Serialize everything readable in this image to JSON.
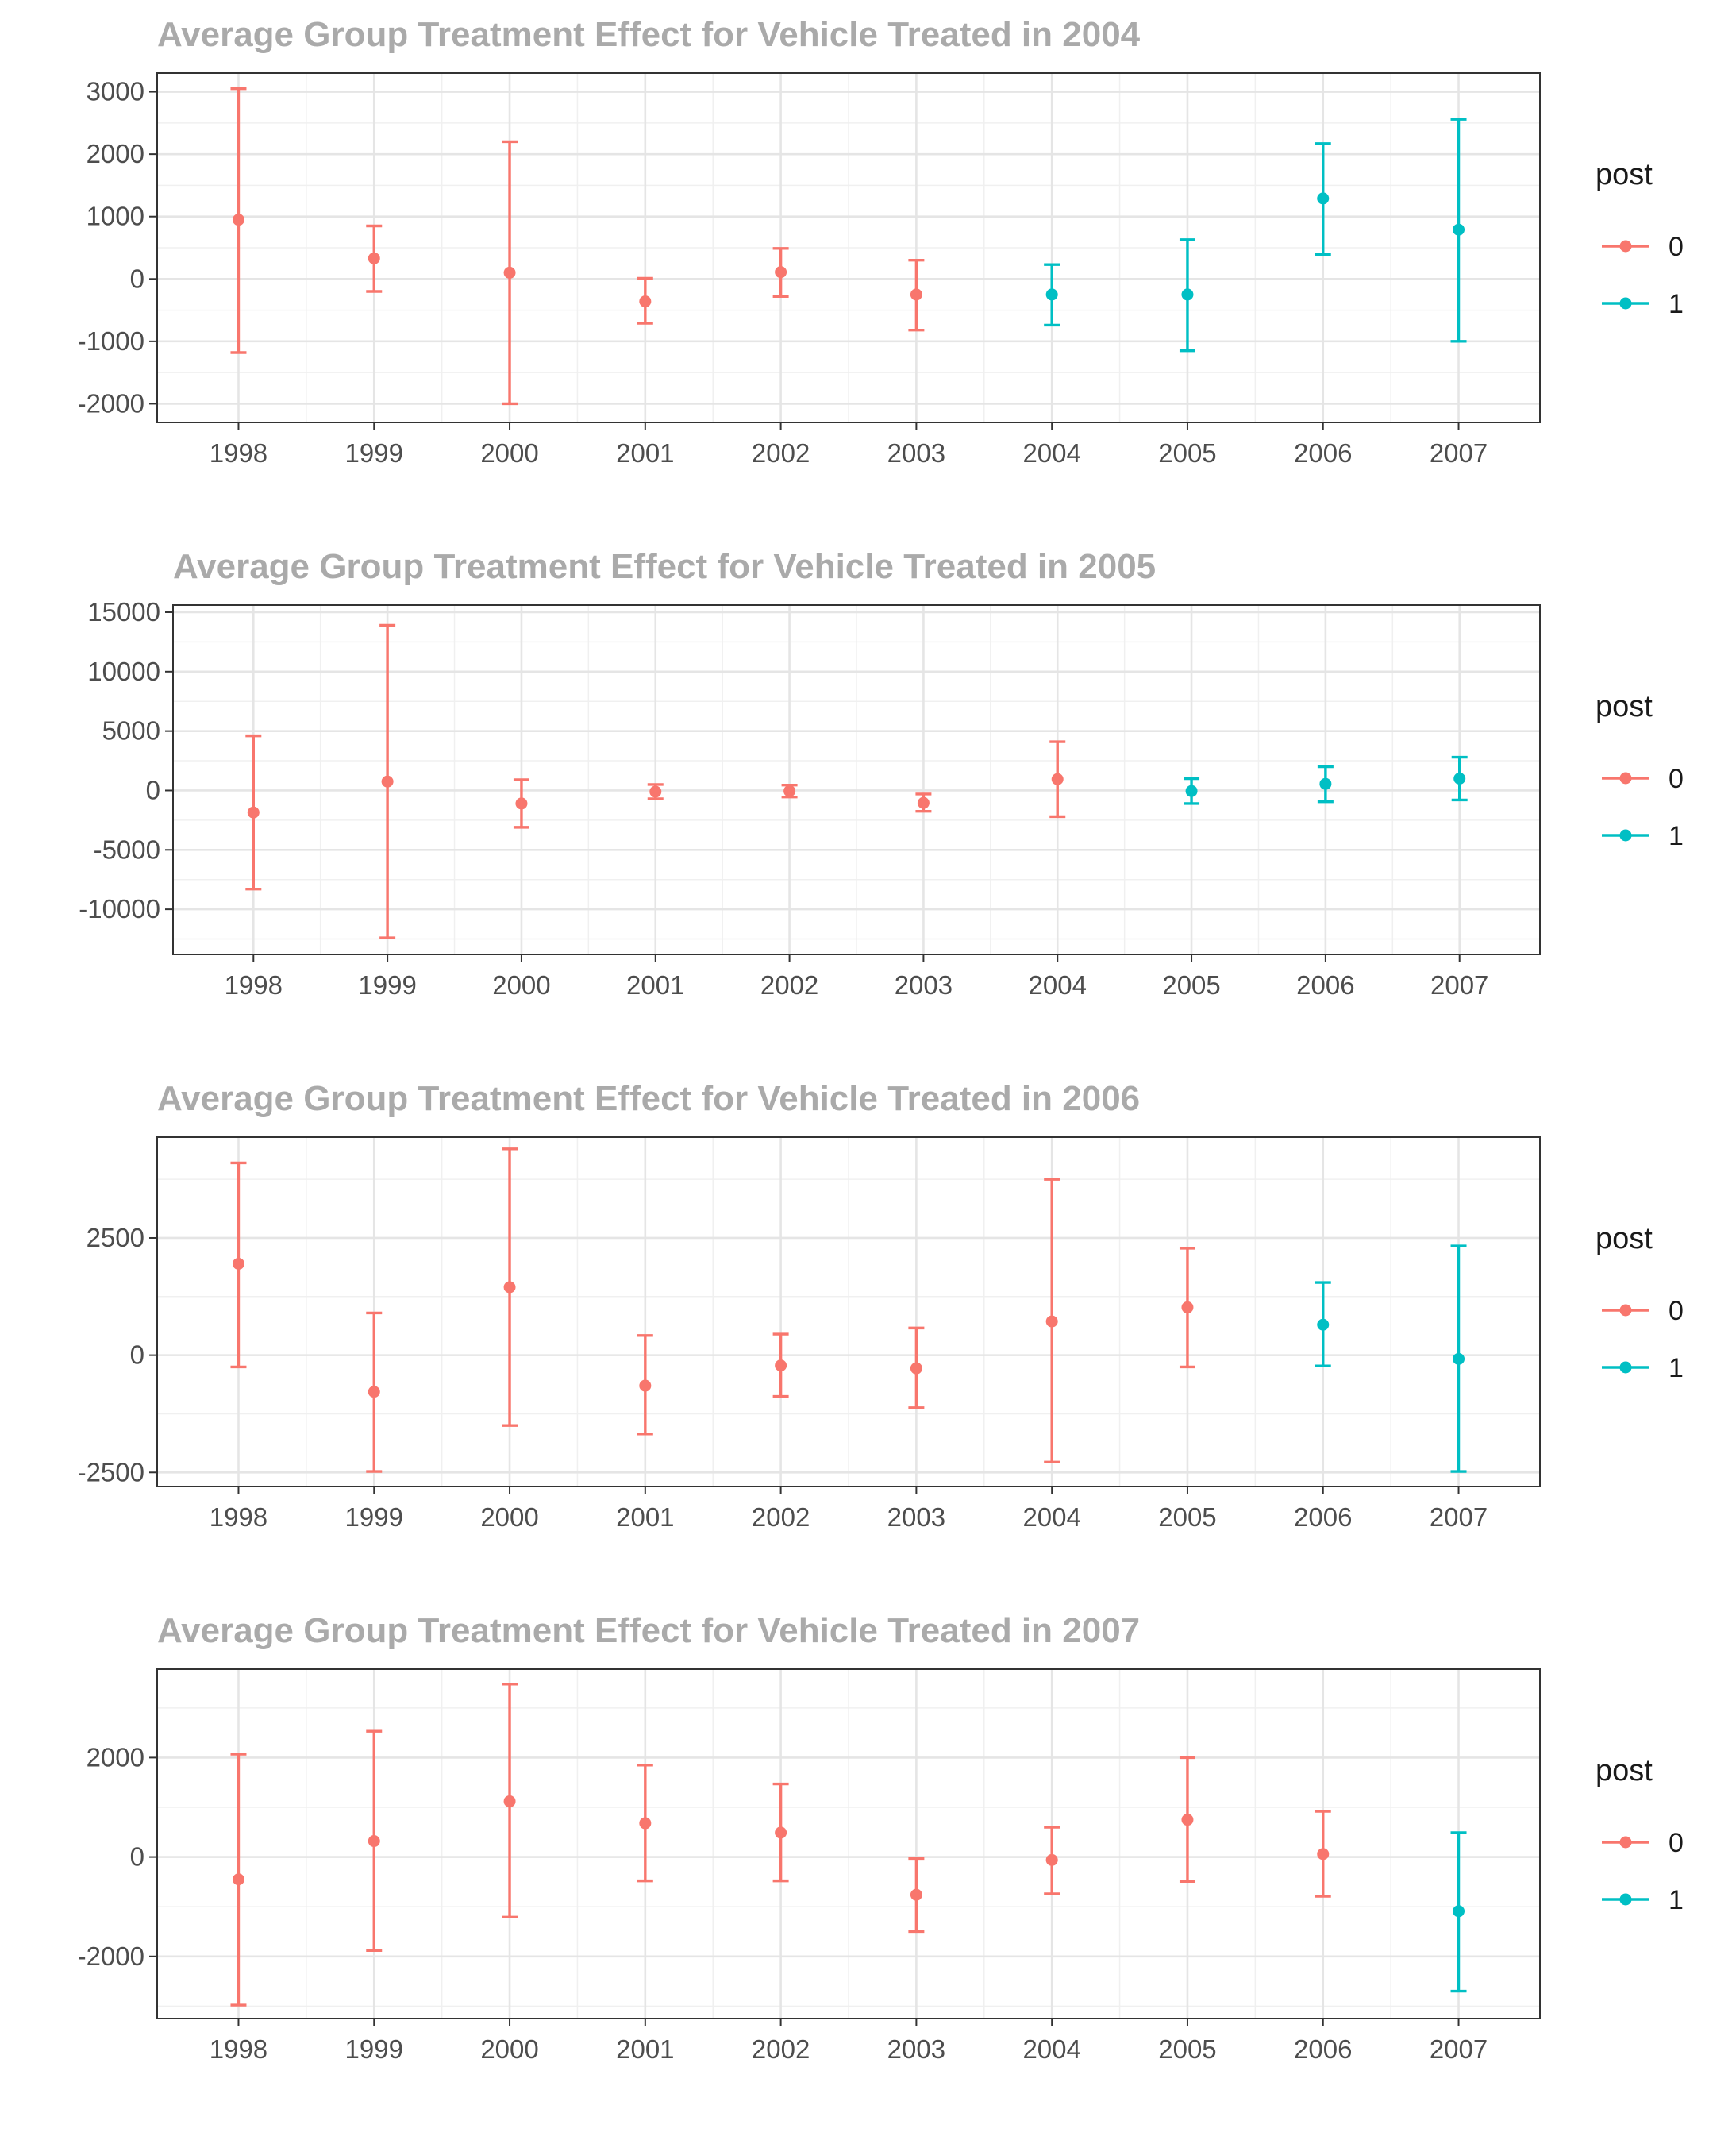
{
  "colors": {
    "pre": "#F8766D",
    "post": "#00BFC4"
  },
  "legend": {
    "title": "post",
    "labels": [
      "0",
      "1"
    ]
  },
  "chart_data": [
    {
      "type": "errorbar",
      "title": "Average Group Treatment Effect for Vehicle Treated in 2004",
      "xlabel": "",
      "ylabel": "",
      "x": [
        "1998",
        "1999",
        "2000",
        "2001",
        "2002",
        "2003",
        "2004",
        "2005",
        "2006",
        "2007"
      ],
      "ylim": [
        -2300,
        3300
      ],
      "yticks": [
        -2000,
        -1000,
        0,
        1000,
        2000,
        3000
      ],
      "ytick_labels": [
        "-2000",
        "-1000",
        "0",
        "1000",
        "2000",
        "3000"
      ],
      "points": [
        {
          "x": "1998",
          "post": 0,
          "y": 950,
          "lower": -1180,
          "upper": 3050
        },
        {
          "x": "1999",
          "post": 0,
          "y": 330,
          "lower": -200,
          "upper": 850
        },
        {
          "x": "2000",
          "post": 0,
          "y": 100,
          "lower": -2000,
          "upper": 2200
        },
        {
          "x": "2001",
          "post": 0,
          "y": -360,
          "lower": -710,
          "upper": 10
        },
        {
          "x": "2002",
          "post": 0,
          "y": 110,
          "lower": -280,
          "upper": 490
        },
        {
          "x": "2003",
          "post": 0,
          "y": -250,
          "lower": -820,
          "upper": 300
        },
        {
          "x": "2004",
          "post": 1,
          "y": -250,
          "lower": -740,
          "upper": 230
        },
        {
          "x": "2005",
          "post": 1,
          "y": -250,
          "lower": -1150,
          "upper": 630
        },
        {
          "x": "2006",
          "post": 1,
          "y": 1290,
          "lower": 390,
          "upper": 2170
        },
        {
          "x": "2007",
          "post": 1,
          "y": 790,
          "lower": -1000,
          "upper": 2560
        }
      ]
    },
    {
      "type": "errorbar",
      "title": "Average Group Treatment Effect for Vehicle Treated in 2005",
      "xlabel": "",
      "ylabel": "",
      "x": [
        "1998",
        "1999",
        "2000",
        "2001",
        "2002",
        "2003",
        "2004",
        "2005",
        "2006",
        "2007"
      ],
      "ylim": [
        -13800,
        15600
      ],
      "yticks": [
        -10000,
        -5000,
        0,
        5000,
        10000,
        15000
      ],
      "ytick_labels": [
        "-10000",
        "-5000",
        "0",
        "5000",
        "10000",
        "15000"
      ],
      "points": [
        {
          "x": "1998",
          "post": 0,
          "y": -1850,
          "lower": -8300,
          "upper": 4600
        },
        {
          "x": "1999",
          "post": 0,
          "y": 750,
          "lower": -12400,
          "upper": 13900
        },
        {
          "x": "2000",
          "post": 0,
          "y": -1100,
          "lower": -3100,
          "upper": 900
        },
        {
          "x": "2001",
          "post": 0,
          "y": -100,
          "lower": -700,
          "upper": 500
        },
        {
          "x": "2002",
          "post": 0,
          "y": -50,
          "lower": -550,
          "upper": 450
        },
        {
          "x": "2003",
          "post": 0,
          "y": -1050,
          "lower": -1750,
          "upper": -300
        },
        {
          "x": "2004",
          "post": 0,
          "y": 950,
          "lower": -2200,
          "upper": 4100
        },
        {
          "x": "2005",
          "post": 1,
          "y": -50,
          "lower": -1100,
          "upper": 1000
        },
        {
          "x": "2006",
          "post": 1,
          "y": 550,
          "lower": -950,
          "upper": 2000
        },
        {
          "x": "2007",
          "post": 1,
          "y": 1000,
          "lower": -800,
          "upper": 2800
        }
      ]
    },
    {
      "type": "errorbar",
      "title": "Average Group Treatment Effect for Vehicle Treated in 2006",
      "xlabel": "",
      "ylabel": "",
      "x": [
        "1998",
        "1999",
        "2000",
        "2001",
        "2002",
        "2003",
        "2004",
        "2005",
        "2006",
        "2007"
      ],
      "ylim": [
        -2800,
        4650
      ],
      "yticks": [
        -2500,
        0,
        2500
      ],
      "ytick_labels": [
        "-2500",
        "0",
        "2500"
      ],
      "points": [
        {
          "x": "1998",
          "post": 0,
          "y": 1950,
          "lower": -250,
          "upper": 4100
        },
        {
          "x": "1999",
          "post": 0,
          "y": -780,
          "lower": -2480,
          "upper": 900
        },
        {
          "x": "2000",
          "post": 0,
          "y": 1450,
          "lower": -1500,
          "upper": 4400
        },
        {
          "x": "2001",
          "post": 0,
          "y": -650,
          "lower": -1680,
          "upper": 420
        },
        {
          "x": "2002",
          "post": 0,
          "y": -220,
          "lower": -880,
          "upper": 450
        },
        {
          "x": "2003",
          "post": 0,
          "y": -280,
          "lower": -1120,
          "upper": 580
        },
        {
          "x": "2004",
          "post": 0,
          "y": 720,
          "lower": -2280,
          "upper": 3750
        },
        {
          "x": "2005",
          "post": 0,
          "y": 1020,
          "lower": -250,
          "upper": 2280
        },
        {
          "x": "2006",
          "post": 1,
          "y": 650,
          "lower": -230,
          "upper": 1550
        },
        {
          "x": "2007",
          "post": 1,
          "y": -80,
          "lower": -2480,
          "upper": 2330
        }
      ]
    },
    {
      "type": "errorbar",
      "title": "Average Group Treatment Effect for Vehicle Treated in 2007",
      "xlabel": "",
      "ylabel": "",
      "x": [
        "1998",
        "1999",
        "2000",
        "2001",
        "2002",
        "2003",
        "2004",
        "2005",
        "2006",
        "2007"
      ],
      "ylim": [
        -3250,
        3780
      ],
      "yticks": [
        -2000,
        0,
        2000
      ],
      "ytick_labels": [
        "-2000",
        "0",
        "2000"
      ],
      "points": [
        {
          "x": "1998",
          "post": 0,
          "y": -450,
          "lower": -2980,
          "upper": 2070
        },
        {
          "x": "1999",
          "post": 0,
          "y": 320,
          "lower": -1880,
          "upper": 2530
        },
        {
          "x": "2000",
          "post": 0,
          "y": 1120,
          "lower": -1210,
          "upper": 3480
        },
        {
          "x": "2001",
          "post": 0,
          "y": 680,
          "lower": -480,
          "upper": 1850
        },
        {
          "x": "2002",
          "post": 0,
          "y": 490,
          "lower": -480,
          "upper": 1470
        },
        {
          "x": "2003",
          "post": 0,
          "y": -760,
          "lower": -1500,
          "upper": -30
        },
        {
          "x": "2004",
          "post": 0,
          "y": -60,
          "lower": -740,
          "upper": 600
        },
        {
          "x": "2005",
          "post": 0,
          "y": 750,
          "lower": -490,
          "upper": 2000
        },
        {
          "x": "2006",
          "post": 0,
          "y": 60,
          "lower": -790,
          "upper": 920
        },
        {
          "x": "2007",
          "post": 1,
          "y": -1090,
          "lower": -2700,
          "upper": 490
        }
      ]
    }
  ]
}
